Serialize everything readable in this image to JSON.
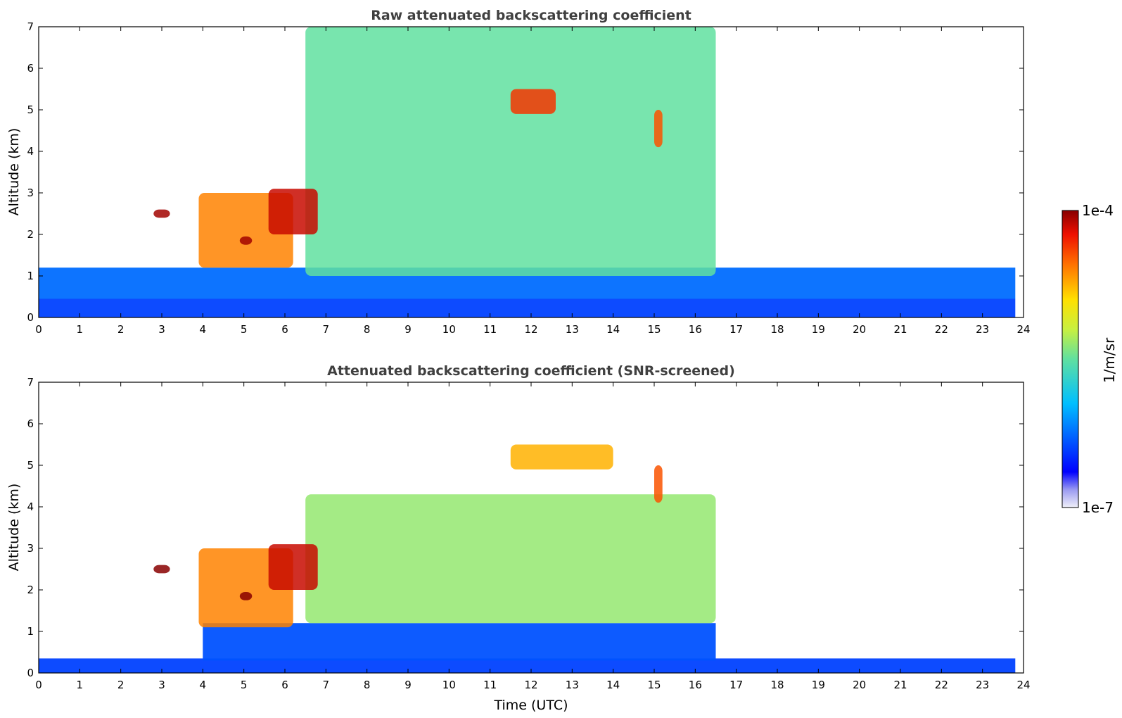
{
  "chart_data": [
    {
      "type": "heatmap",
      "title": "Raw attenuated backscattering coefficient",
      "xlabel": "",
      "ylabel": "Altitude (km)",
      "xlim": [
        0,
        24
      ],
      "ylim": [
        0,
        7
      ],
      "x_ticks": [
        "0",
        "1",
        "2",
        "3",
        "4",
        "5",
        "6",
        "7",
        "8",
        "9",
        "10",
        "11",
        "12",
        "13",
        "14",
        "15",
        "16",
        "17",
        "18",
        "19",
        "20",
        "21",
        "22",
        "23",
        "24"
      ],
      "y_ticks": [
        "0",
        "1",
        "2",
        "3",
        "4",
        "5",
        "6",
        "7"
      ],
      "features": [
        {
          "label": "surface layer",
          "x": [
            0,
            23.8
          ],
          "y": [
            0,
            0.45
          ],
          "level": 0.12
        },
        {
          "label": "near-surface scatter",
          "x": [
            0,
            23.8
          ],
          "y": [
            0.45,
            1.2
          ],
          "level": 0.2
        },
        {
          "label": "aerosol layer",
          "x": [
            6.5,
            16.5
          ],
          "y": [
            1.0,
            7.0
          ],
          "level": 0.5
        },
        {
          "label": "plume",
          "x": [
            3.9,
            6.2
          ],
          "y": [
            1.2,
            3.0
          ],
          "level": 0.8
        },
        {
          "label": "dense core",
          "x": [
            4.9,
            5.2
          ],
          "y": [
            1.75,
            1.95
          ],
          "level": 0.98
        },
        {
          "label": "isolated cloud",
          "x": [
            2.8,
            3.2
          ],
          "y": [
            2.4,
            2.6
          ],
          "level": 0.98
        },
        {
          "label": "cloud streaks",
          "x": [
            5.6,
            6.8
          ],
          "y": [
            2.0,
            3.1
          ],
          "level": 0.95
        },
        {
          "label": "high cloud",
          "x": [
            11.5,
            12.6
          ],
          "y": [
            4.9,
            5.5
          ],
          "level": 0.88
        },
        {
          "label": "virga",
          "x": [
            15.0,
            15.2
          ],
          "y": [
            4.1,
            5.0
          ],
          "level": 0.85
        }
      ]
    },
    {
      "type": "heatmap",
      "title": "Attenuated backscattering coefficient (SNR-screened)",
      "xlabel": "Time (UTC)",
      "ylabel": "Altitude (km)",
      "xlim": [
        0,
        24
      ],
      "ylim": [
        0,
        7
      ],
      "x_ticks": [
        "0",
        "1",
        "2",
        "3",
        "4",
        "5",
        "6",
        "7",
        "8",
        "9",
        "10",
        "11",
        "12",
        "13",
        "14",
        "15",
        "16",
        "17",
        "18",
        "19",
        "20",
        "21",
        "22",
        "23",
        "24"
      ],
      "y_ticks": [
        "0",
        "1",
        "2",
        "3",
        "4",
        "5",
        "6",
        "7"
      ],
      "features": [
        {
          "label": "surface layer",
          "x": [
            0,
            23.8
          ],
          "y": [
            0,
            0.35
          ],
          "level": 0.12
        },
        {
          "label": "boundary layer",
          "x": [
            4.0,
            16.5
          ],
          "y": [
            0.3,
            1.2
          ],
          "level": 0.15
        },
        {
          "label": "aerosol layer",
          "x": [
            6.5,
            16.5
          ],
          "y": [
            1.2,
            4.3
          ],
          "level": 0.55
        },
        {
          "label": "plume",
          "x": [
            3.9,
            6.2
          ],
          "y": [
            1.1,
            3.0
          ],
          "level": 0.8
        },
        {
          "label": "dense core",
          "x": [
            4.9,
            5.2
          ],
          "y": [
            1.75,
            1.95
          ],
          "level": 1.0
        },
        {
          "label": "isolated cloud",
          "x": [
            2.8,
            3.2
          ],
          "y": [
            2.4,
            2.6
          ],
          "level": 1.0
        },
        {
          "label": "cloud streaks",
          "x": [
            5.6,
            6.8
          ],
          "y": [
            2.0,
            3.1
          ],
          "level": 0.95
        },
        {
          "label": "high cloud",
          "x": [
            11.5,
            14.0
          ],
          "y": [
            4.9,
            5.5
          ],
          "level": 0.75
        },
        {
          "label": "virga",
          "x": [
            15.0,
            15.2
          ],
          "y": [
            4.1,
            5.0
          ],
          "level": 0.85
        }
      ]
    }
  ],
  "colorbar": {
    "label": "1/m/sr",
    "max_label": "1e-4",
    "min_label": "1e-7",
    "range": [
      1e-07,
      0.0001
    ],
    "scale": "log",
    "colormap": [
      "#f0f0f8",
      "#0000ff",
      "#00bfff",
      "#9fe060",
      "#ffe000",
      "#ff6000",
      "#aa0000"
    ]
  }
}
